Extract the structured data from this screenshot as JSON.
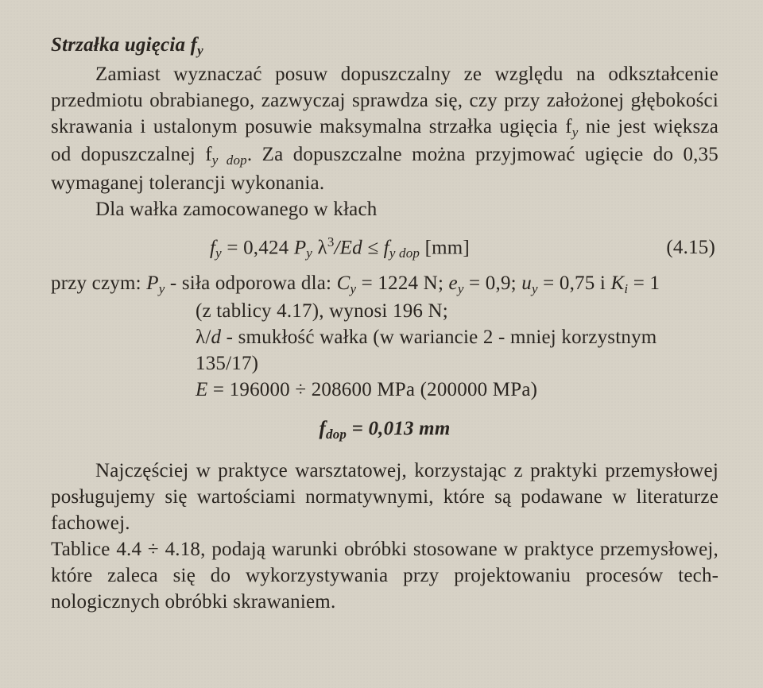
{
  "heading": "Strzałka ugięcia f",
  "heading_sub": "y",
  "p1_a": "Zamiast wyznaczać posuw dopuszczalny ze względu na odkształcenie przed­miotu obrabianego, zazwyczaj sprawdza się, czy przy założonej głębokości skrawania i ustalonym posuwie maksymalna strzałka ugięcia f",
  "p1_sub1": "y",
  "p1_b": " nie jest większa od dopuszczalnej f",
  "p1_sub2": "y dop",
  "p1_c": ". Za dopuszczalne można przyjmować ugięcie do 0,35 wymaganej tolerancji wykonania.",
  "p2": "Dla wałka zamocowanego w kłach",
  "formula": {
    "lhs_f": "f",
    "lhs_sub": "y",
    "eq": " = 0,424 ",
    "P": "P",
    "P_sub": "y",
    "sp": " ",
    "lam": "λ",
    "lam_sup": "3",
    "rest": "/Ed ≤ ",
    "rhs_f": "f",
    "rhs_sub": "y dop",
    "unit": "   [mm]",
    "eqnum": "(4.15)"
  },
  "p3_lead": "przy czym: ",
  "p3_Py_P": "P",
  "p3_Py_sub": "y",
  "p3_a": " - siła odporowa dla: ",
  "p3_Cy_C": "C",
  "p3_Cy_sub": "y",
  "p3_b": " = 1224 N; ",
  "p3_ey_e": "e",
  "p3_ey_sub": "y",
  "p3_c": " = 0,9; ",
  "p3_uy_u": "u",
  "p3_uy_sub": "y",
  "p3_d": " = 0,75 i ",
  "p3_Ki_K": "K",
  "p3_Ki_sub": "i",
  "p3_e": " = 1",
  "p3_line2": "(z tablicy 4.17), wynosi 196 N;",
  "p3_line3_a": "λ/",
  "p3_line3_d": "d",
  "p3_line3_b": " - smukłość wałka (w wariancie 2 - mniej korzystnym 135/17)",
  "p3_line4_a": "E",
  "p3_line4_b": " = 196000 ÷ 208600 MPa (200000 MPa)",
  "fdop_f": "f",
  "fdop_sub": "dop",
  "fdop_val": " = 0,013 mm",
  "p4": "Najczęściej w praktyce warsztatowej, korzystając z praktyki przemysłowej posługujemy się wartościami normatywnymi, które są podawane w literaturze fachowej.",
  "p5": "Tablice 4.4 ÷ 4.18, podają warunki obróbki stosowane w praktyce przemysło­wej, które zaleca się do wykorzystywania przy projektowaniu procesów tech­nologicznych obróbki skrawaniem."
}
